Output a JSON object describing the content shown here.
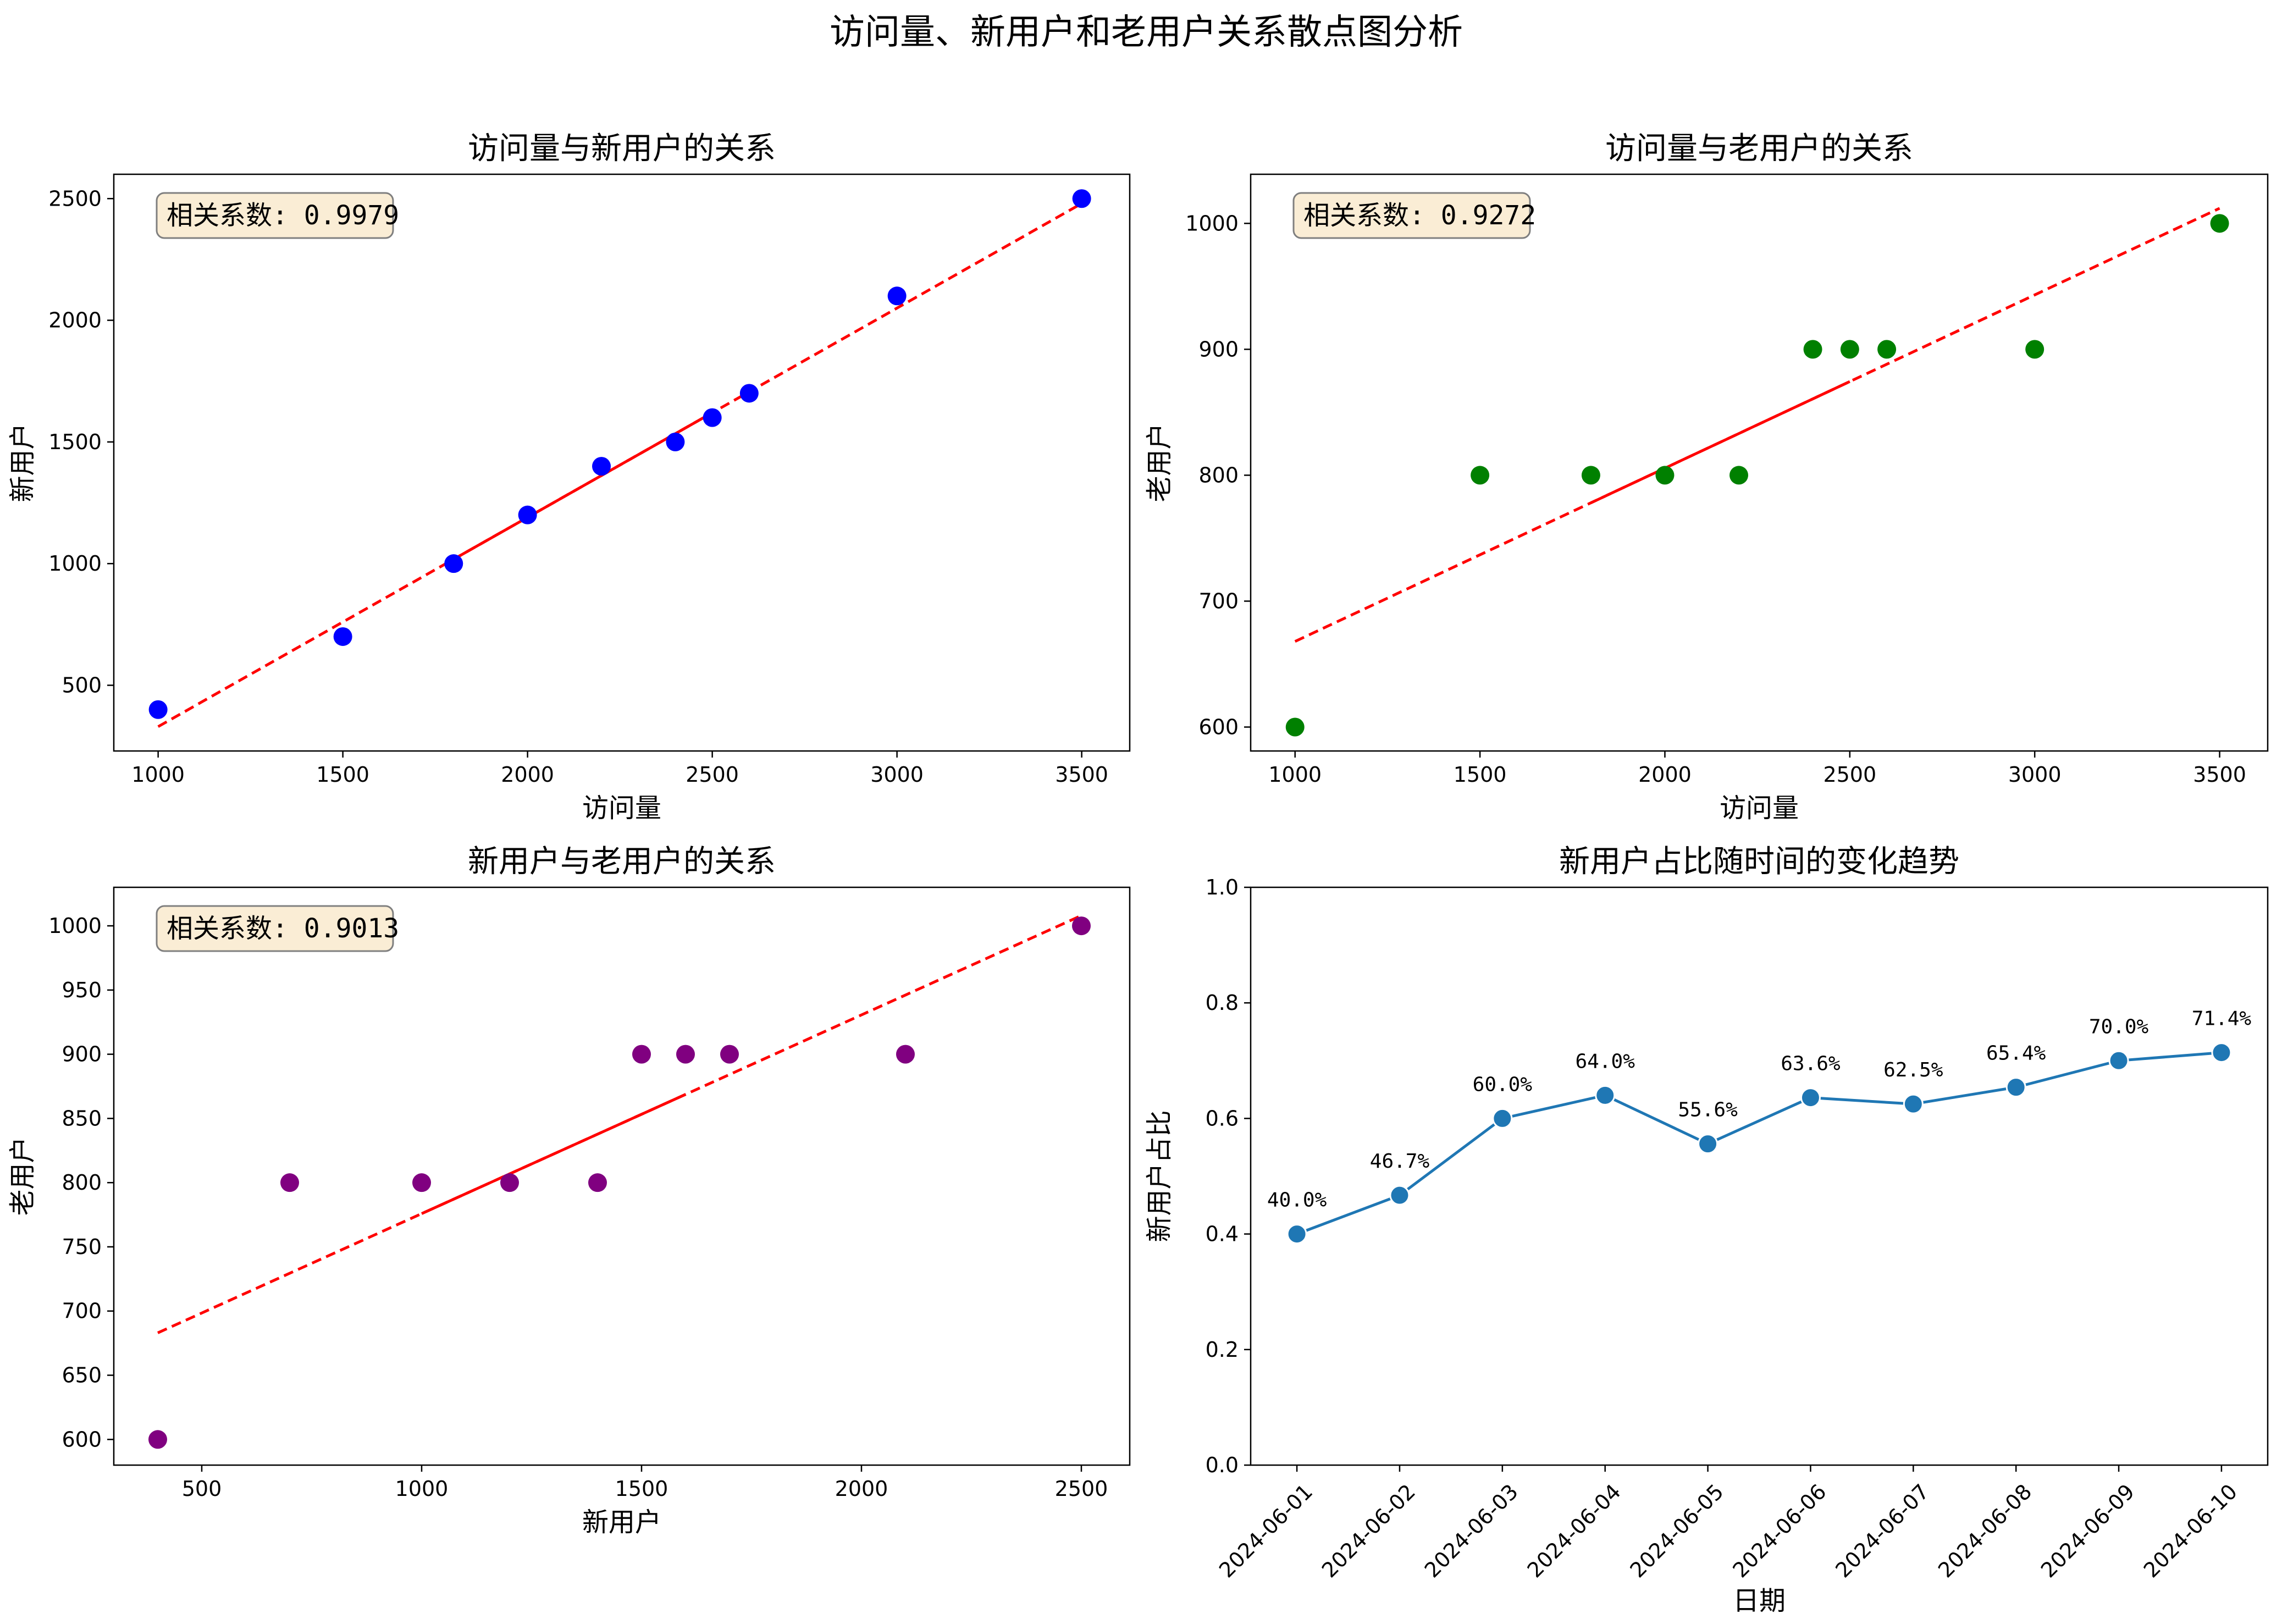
{
  "title": "访问量、新用户和老用户关系散点图分析",
  "colors": {
    "trend": "#ff0000",
    "panel1": "#0000ff",
    "panel2": "#008000",
    "panel3": "#800080",
    "panel4": "#1f77b4",
    "box_fill": "#f5deb3",
    "box_edge": "#7f7f7f"
  },
  "chart_data": [
    {
      "type": "scatter",
      "title": "访问量与新用户的关系",
      "xlabel": "访问量",
      "ylabel": "新用户",
      "annotation": "相关系数: 0.9979",
      "xlim": [
        880,
        3630
      ],
      "ylim": [
        230,
        2600
      ],
      "xticks": [
        1000,
        1500,
        2000,
        2500,
        3000,
        3500
      ],
      "yticks": [
        500,
        1000,
        1500,
        2000,
        2500
      ],
      "x": [
        1000,
        1500,
        1800,
        2000,
        2200,
        2400,
        2500,
        2600,
        3000,
        3500
      ],
      "y": [
        400,
        700,
        1000,
        1200,
        1400,
        1500,
        1600,
        1700,
        2100,
        2500
      ],
      "trend": {
        "x": [
          1000,
          3500
        ],
        "y": [
          330,
          2480
        ],
        "solid_x": [
          1800,
          2500
        ]
      }
    },
    {
      "type": "scatter",
      "title": "访问量与老用户的关系",
      "xlabel": "访问量",
      "ylabel": "老用户",
      "annotation": "相关系数: 0.9272",
      "xlim": [
        880,
        3630
      ],
      "ylim": [
        581,
        1039
      ],
      "xticks": [
        1000,
        1500,
        2000,
        2500,
        3000,
        3500
      ],
      "yticks": [
        600,
        700,
        800,
        900,
        1000
      ],
      "x": [
        1000,
        1500,
        1800,
        2000,
        2200,
        2400,
        2500,
        2600,
        3000,
        3500
      ],
      "y": [
        600,
        800,
        800,
        800,
        800,
        900,
        900,
        900,
        900,
        1000
      ],
      "trend": {
        "x": [
          1000,
          3500
        ],
        "y": [
          668,
          1012
        ],
        "solid_x": [
          1800,
          2500
        ]
      }
    },
    {
      "type": "scatter",
      "title": "新用户与老用户的关系",
      "xlabel": "新用户",
      "ylabel": "老用户",
      "annotation": "相关系数: 0.9013",
      "xlim": [
        300,
        2610
      ],
      "ylim": [
        580,
        1030
      ],
      "xticks": [
        500,
        1000,
        1500,
        2000,
        2500
      ],
      "yticks": [
        600,
        650,
        700,
        750,
        800,
        850,
        900,
        950,
        1000
      ],
      "x": [
        400,
        700,
        1000,
        1200,
        1400,
        1500,
        1600,
        1700,
        2100,
        2500
      ],
      "y": [
        600,
        800,
        800,
        800,
        800,
        900,
        900,
        900,
        900,
        1000
      ],
      "trend": {
        "x": [
          400,
          2500
        ],
        "y": [
          683,
          1008
        ],
        "solid_x": [
          1000,
          1600
        ]
      }
    },
    {
      "type": "line",
      "title": "新用户占比随时间的变化趋势",
      "xlabel": "日期",
      "ylabel": "新用户占比",
      "xlim": [
        -0.45,
        9.45
      ],
      "ylim": [
        0,
        1.0
      ],
      "yticks": [
        0.0,
        0.2,
        0.4,
        0.6,
        0.8,
        1.0
      ],
      "ytick_labels": [
        "0.0",
        "0.2",
        "0.4",
        "0.6",
        "0.8",
        "1.0"
      ],
      "categories": [
        "2024-06-01",
        "2024-06-02",
        "2024-06-03",
        "2024-06-04",
        "2024-06-05",
        "2024-06-06",
        "2024-06-07",
        "2024-06-08",
        "2024-06-09",
        "2024-06-10"
      ],
      "values": [
        0.4,
        0.467,
        0.6,
        0.64,
        0.556,
        0.636,
        0.625,
        0.654,
        0.7,
        0.714
      ],
      "labels": [
        "40.0%",
        "46.7%",
        "60.0%",
        "64.0%",
        "55.6%",
        "63.6%",
        "62.5%",
        "65.4%",
        "70.0%",
        "71.4%"
      ]
    }
  ]
}
